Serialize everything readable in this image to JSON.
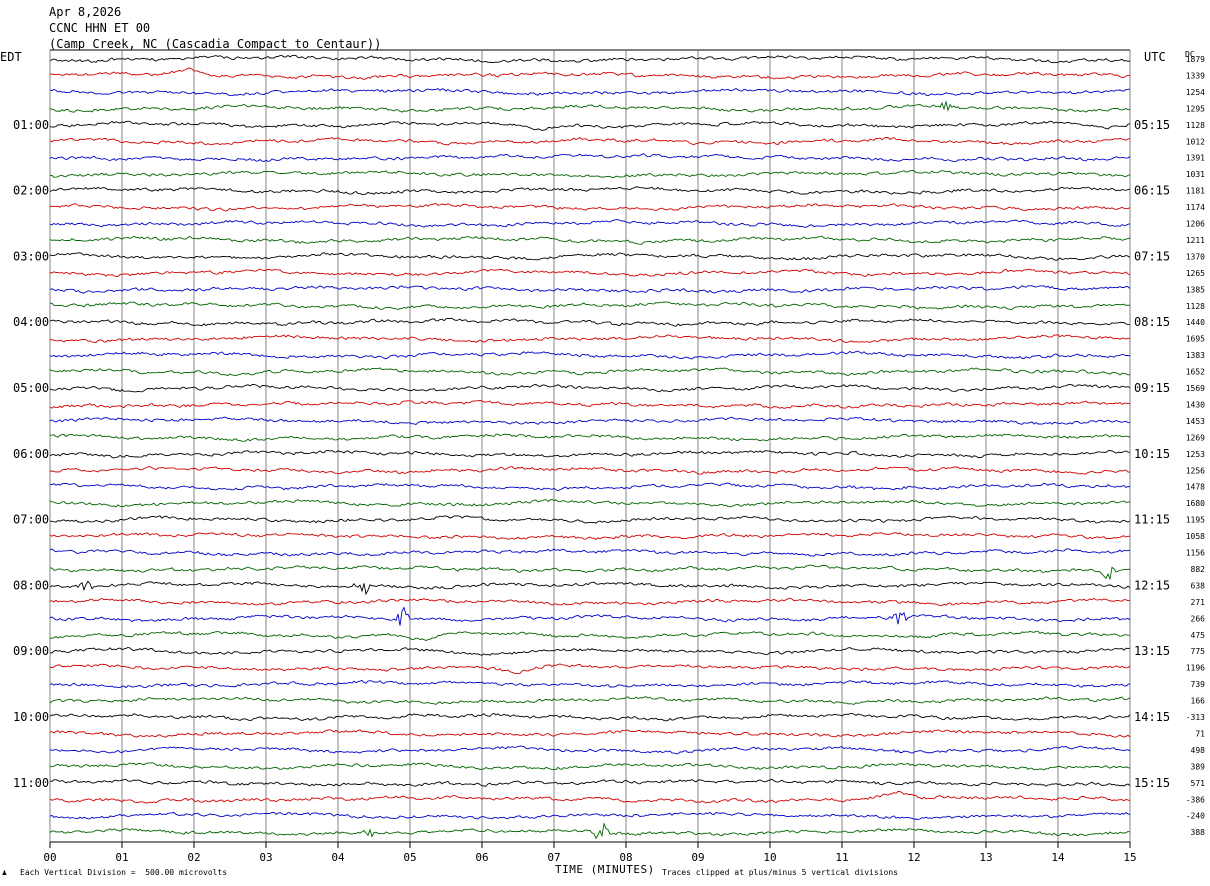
{
  "header": {
    "date": "Apr 8,2026",
    "station": "CCNC HHN ET 00",
    "location": "(Camp Creek, NC (Cascadia Compact to Centaur))"
  },
  "chart_data": {
    "type": "line",
    "title": "Apr 8,2026",
    "left_axis_label": "EDT",
    "right_axis_label": "UTC",
    "dc_label": "DC",
    "xlabel": "TIME (MINUTES)",
    "xlim": [
      0,
      15
    ],
    "x_tick_labels": [
      "00",
      "01",
      "02",
      "03",
      "04",
      "05",
      "06",
      "07",
      "08",
      "09",
      "10",
      "11",
      "12",
      "13",
      "14",
      "15"
    ],
    "grid": "vertical-every-minute",
    "trace_colors": [
      "#000000",
      "#d00000",
      "#0000c8",
      "#006400"
    ],
    "row_count": 48,
    "edt_hour_labels": [
      {
        "row": 4,
        "label": "01:00"
      },
      {
        "row": 8,
        "label": "02:00"
      },
      {
        "row": 12,
        "label": "03:00"
      },
      {
        "row": 16,
        "label": "04:00"
      },
      {
        "row": 20,
        "label": "05:00"
      },
      {
        "row": 24,
        "label": "06:00"
      },
      {
        "row": 28,
        "label": "07:00"
      },
      {
        "row": 32,
        "label": "08:00"
      },
      {
        "row": 36,
        "label": "09:00"
      },
      {
        "row": 40,
        "label": "10:00"
      },
      {
        "row": 44,
        "label": "11:00"
      }
    ],
    "utc_hour_labels": [
      {
        "row": 4,
        "label": "05:15"
      },
      {
        "row": 8,
        "label": "06:15"
      },
      {
        "row": 12,
        "label": "07:15"
      },
      {
        "row": 16,
        "label": "08:15"
      },
      {
        "row": 20,
        "label": "09:15"
      },
      {
        "row": 24,
        "label": "10:15"
      },
      {
        "row": 28,
        "label": "11:15"
      },
      {
        "row": 32,
        "label": "12:15"
      },
      {
        "row": 36,
        "label": "13:15"
      },
      {
        "row": 40,
        "label": "14:15"
      },
      {
        "row": 44,
        "label": "15:15"
      }
    ],
    "dc_values": [
      "1879",
      "1339",
      "1254",
      "1295",
      "1128",
      "1012",
      "1391",
      "1031",
      "1181",
      "1174",
      "1206",
      "1211",
      "1370",
      "1265",
      "1385",
      "1128",
      "1440",
      "1695",
      "1383",
      "1652",
      "1569",
      "1430",
      "1453",
      "1269",
      "1253",
      "1256",
      "1478",
      "1680",
      "1195",
      "1058",
      "1156",
      "882",
      "638",
      "271",
      "266",
      "475",
      "775",
      "1196",
      "739",
      "166",
      "-313",
      "71",
      "498",
      "389",
      "571",
      "-386",
      "-240",
      "388"
    ],
    "events": [
      {
        "row": 1,
        "minute": 1.95,
        "type": "swell",
        "amp": 0.7
      },
      {
        "row": 0,
        "minute": 12.9,
        "type": "swell",
        "amp": 0.6
      },
      {
        "row": 3,
        "minute": 12.45,
        "type": "burst",
        "amp": 0.9
      },
      {
        "row": 4,
        "minute": 6.8,
        "type": "dip",
        "amp": 0.6
      },
      {
        "row": 4,
        "minute": 14.7,
        "type": "dip",
        "amp": 0.6
      },
      {
        "row": 31,
        "minute": 14.7,
        "type": "burst",
        "amp": 1.0
      },
      {
        "row": 32,
        "minute": 4.35,
        "type": "burst",
        "amp": 1.6
      },
      {
        "row": 32,
        "minute": 0.5,
        "type": "burst",
        "amp": 0.7
      },
      {
        "row": 34,
        "minute": 4.9,
        "type": "burst",
        "amp": 1.3
      },
      {
        "row": 34,
        "minute": 11.8,
        "type": "burst",
        "amp": 0.9
      },
      {
        "row": 35,
        "minute": 5.2,
        "type": "dip",
        "amp": 0.8
      },
      {
        "row": 37,
        "minute": 6.5,
        "type": "dip",
        "amp": 0.8
      },
      {
        "row": 45,
        "minute": 11.8,
        "type": "swell",
        "amp": 1.0
      },
      {
        "row": 47,
        "minute": 7.65,
        "type": "burst",
        "amp": 1.6
      },
      {
        "row": 47,
        "minute": 4.4,
        "type": "burst",
        "amp": 0.8
      }
    ]
  },
  "footer": {
    "vertical_division": "Each Vertical Division =  500.00 microvolts",
    "clip_note": "Traces clipped at plus/minus 5 vertical divisions",
    "corner_mark": "♟"
  }
}
